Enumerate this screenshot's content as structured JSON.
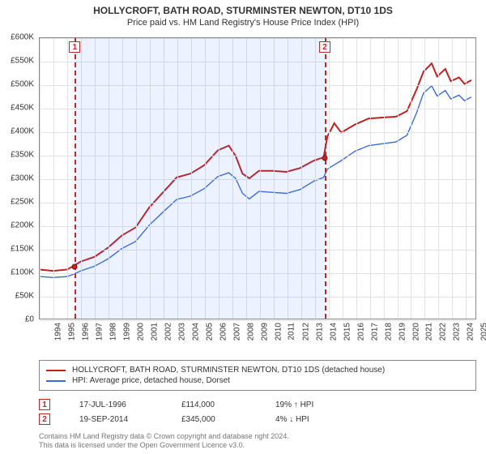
{
  "title_main": "HOLLYCROFT, BATH ROAD, STURMINSTER NEWTON, DT10 1DS",
  "title_sub": "Price paid vs. HM Land Registry's House Price Index (HPI)",
  "chart": {
    "type": "line",
    "x_min": 1994,
    "x_max": 2025.8,
    "y_min": 0,
    "y_max": 600,
    "y_unit_prefix": "£",
    "y_unit_suffix": "K",
    "y_tick_step": 50,
    "x_ticks": [
      1994,
      1995,
      1996,
      1997,
      1998,
      1999,
      2000,
      2001,
      2002,
      2003,
      2004,
      2005,
      2006,
      2007,
      2008,
      2009,
      2010,
      2011,
      2012,
      2013,
      2014,
      2015,
      2016,
      2017,
      2018,
      2019,
      2020,
      2021,
      2022,
      2023,
      2024,
      2025
    ],
    "grid_color": "#dfe3e8",
    "axis_color": "#888888",
    "background": "#ffffff",
    "band": {
      "from": 1996.55,
      "to": 2014.72,
      "color": "rgba(70,130,255,0.10)"
    },
    "events": [
      {
        "n": "1",
        "x": 1996.55,
        "y_marker": 114,
        "date": "17-JUL-1996",
        "price": "£114,000",
        "delta": "19% ↑ HPI"
      },
      {
        "n": "2",
        "x": 2014.72,
        "y_marker": 345,
        "date": "19-SEP-2014",
        "price": "£345,000",
        "delta": "4% ↓ HPI"
      }
    ],
    "series": [
      {
        "name": "HOLLYCROFT, BATH ROAD, STURMINSTER NEWTON, DT10 1DS (detached house)",
        "color": "#c22020",
        "width": 2,
        "points": [
          [
            1994,
            105
          ],
          [
            1995,
            102
          ],
          [
            1996,
            105
          ],
          [
            1996.55,
            114
          ],
          [
            1997,
            122
          ],
          [
            1998,
            132
          ],
          [
            1999,
            152
          ],
          [
            2000,
            178
          ],
          [
            2001,
            195
          ],
          [
            2002,
            238
          ],
          [
            2003,
            270
          ],
          [
            2004,
            302
          ],
          [
            2005,
            310
          ],
          [
            2006,
            328
          ],
          [
            2007,
            360
          ],
          [
            2007.8,
            370
          ],
          [
            2008.3,
            348
          ],
          [
            2008.8,
            310
          ],
          [
            2009.3,
            300
          ],
          [
            2010,
            316
          ],
          [
            2011,
            316
          ],
          [
            2012,
            314
          ],
          [
            2013,
            322
          ],
          [
            2014,
            338
          ],
          [
            2014.72,
            345
          ],
          [
            2015,
            390
          ],
          [
            2015.5,
            418
          ],
          [
            2016,
            398
          ],
          [
            2017,
            415
          ],
          [
            2018,
            428
          ],
          [
            2019,
            430
          ],
          [
            2020,
            432
          ],
          [
            2020.8,
            444
          ],
          [
            2021.5,
            490
          ],
          [
            2022,
            528
          ],
          [
            2022.6,
            546
          ],
          [
            2023,
            518
          ],
          [
            2023.6,
            534
          ],
          [
            2024,
            508
          ],
          [
            2024.6,
            516
          ],
          [
            2025,
            502
          ],
          [
            2025.5,
            510
          ]
        ]
      },
      {
        "name": "HPI: Average price, detached house, Dorset",
        "color": "#3b6bd6",
        "width": 1.4,
        "points": [
          [
            1994,
            90
          ],
          [
            1995,
            88
          ],
          [
            1996,
            90
          ],
          [
            1996.55,
            96
          ],
          [
            1997,
            102
          ],
          [
            1998,
            112
          ],
          [
            1999,
            128
          ],
          [
            2000,
            150
          ],
          [
            2001,
            165
          ],
          [
            2002,
            200
          ],
          [
            2003,
            228
          ],
          [
            2004,
            255
          ],
          [
            2005,
            262
          ],
          [
            2006,
            278
          ],
          [
            2007,
            304
          ],
          [
            2007.8,
            312
          ],
          [
            2008.3,
            300
          ],
          [
            2008.8,
            268
          ],
          [
            2009.3,
            256
          ],
          [
            2010,
            272
          ],
          [
            2011,
            270
          ],
          [
            2012,
            268
          ],
          [
            2013,
            276
          ],
          [
            2014,
            294
          ],
          [
            2014.72,
            302
          ],
          [
            2015,
            320
          ],
          [
            2016,
            338
          ],
          [
            2017,
            358
          ],
          [
            2018,
            370
          ],
          [
            2019,
            374
          ],
          [
            2020,
            378
          ],
          [
            2020.8,
            392
          ],
          [
            2021.5,
            440
          ],
          [
            2022,
            482
          ],
          [
            2022.6,
            498
          ],
          [
            2023,
            476
          ],
          [
            2023.6,
            488
          ],
          [
            2024,
            470
          ],
          [
            2024.6,
            478
          ],
          [
            2025,
            466
          ],
          [
            2025.5,
            474
          ]
        ]
      }
    ]
  },
  "legend": {
    "rows": [
      {
        "color": "#c22020",
        "label": "HOLLYCROFT, BATH ROAD, STURMINSTER NEWTON, DT10 1DS (detached house)"
      },
      {
        "color": "#3b6bd6",
        "label": "HPI: Average price, detached house, Dorset"
      }
    ]
  },
  "footer_line1": "Contains HM Land Registry data © Crown copyright and database right 2024.",
  "footer_line2": "This data is licensed under the Open Government Licence v3.0."
}
